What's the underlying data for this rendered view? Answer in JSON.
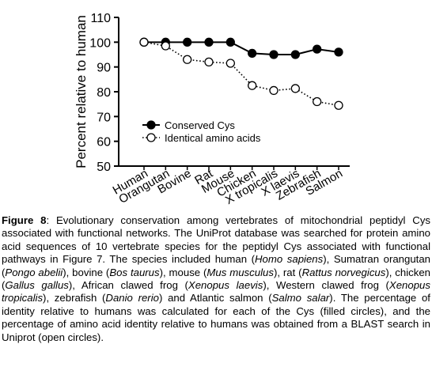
{
  "chart_data": {
    "type": "line",
    "categories": [
      "Human",
      "Orangutan",
      "Bovine",
      "Rat",
      "Mouse",
      "Chicken",
      "X tropicalis",
      "X laevis",
      "Zebrafish",
      "Salmon"
    ],
    "series": [
      {
        "name": "Conserved Cys",
        "marker": "filled-circle",
        "line": "solid",
        "values": [
          100,
          100,
          100,
          100,
          100,
          95.5,
          95,
          95,
          97.2,
          96
        ]
      },
      {
        "name": "Identical amino acids",
        "marker": "open-circle",
        "line": "dotted",
        "values": [
          100,
          98.5,
          93,
          92,
          91.5,
          82.5,
          80.5,
          81.3,
          76,
          74.5
        ]
      }
    ],
    "ylabel": "Percent relative to human",
    "xlabel": "",
    "ylim": [
      50,
      110
    ],
    "yticks": [
      50,
      60,
      70,
      80,
      90,
      100,
      110
    ],
    "legend": "lower-left",
    "grid": false
  },
  "caption": {
    "label": "Figure 8",
    "segments": [
      {
        "t": ": Evolutionary conservation among vertebrates of mitochondrial peptidyl Cys associated with functional networks.  The UniProt database was searched for protein amino acid sequences of 10 vertebrate species for the peptidyl Cys associated with functional pathways in Figure 7.  The species included human (",
        "i": false
      },
      {
        "t": "Homo sapiens",
        "i": true
      },
      {
        "t": "), Sumatran orangutan (",
        "i": false
      },
      {
        "t": "Pongo abelii",
        "i": true
      },
      {
        "t": "), bovine (",
        "i": false
      },
      {
        "t": "Bos taurus",
        "i": true
      },
      {
        "t": "), mouse (",
        "i": false
      },
      {
        "t": "Mus musculus",
        "i": true
      },
      {
        "t": "), rat (",
        "i": false
      },
      {
        "t": "Rattus norvegicus",
        "i": true
      },
      {
        "t": "), chicken (",
        "i": false
      },
      {
        "t": "Gallus gallus",
        "i": true
      },
      {
        "t": "), African clawed frog (",
        "i": false
      },
      {
        "t": "Xenopus laevis",
        "i": true
      },
      {
        "t": "), Western clawed frog (",
        "i": false
      },
      {
        "t": "Xenopus tropicalis",
        "i": true
      },
      {
        "t": "), zebrafish (",
        "i": false
      },
      {
        "t": "Danio rerio",
        "i": true
      },
      {
        "t": ") and Atlantic salmon (",
        "i": false
      },
      {
        "t": "Salmo salar",
        "i": true
      },
      {
        "t": "). The percentage of identity relative to humans was calculated for each of the Cys (filled circles), and the percentage of amino acid identity relative to humans was obtained from a BLAST search in Uniprot (open circles).",
        "i": false
      }
    ]
  }
}
